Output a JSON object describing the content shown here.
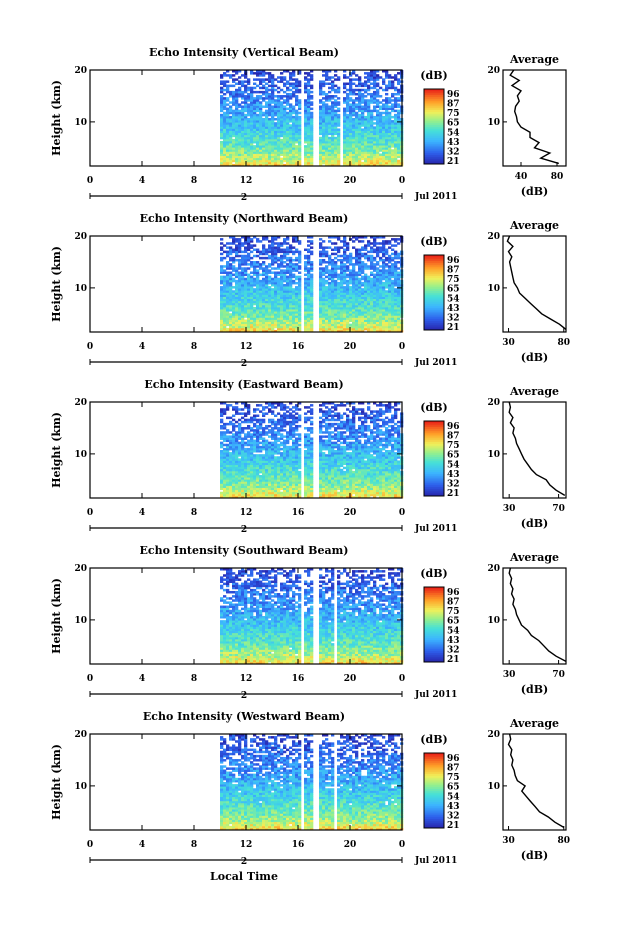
{
  "figure": {
    "xlabel": "Local Time",
    "date_label": "Jul 2011",
    "cbar_unit": "(dB)",
    "avg_title": "Average",
    "avg_xlabel": "(dB)",
    "day_label": "2"
  },
  "chart_data": [
    {
      "type": "heatmap",
      "title": "Echo Intensity (Vertical Beam)",
      "ylabel": "Height (km)",
      "xlabel": "Local Time",
      "x_ticks": [
        "0",
        "4",
        "8",
        "12",
        "16",
        "20",
        "0"
      ],
      "xlim": [
        0,
        24
      ],
      "y_ticks": [
        "10",
        "20"
      ],
      "ylim": [
        1.5,
        20
      ],
      "data_start_hour": 10,
      "gap_hours": [
        [
          16.3,
          16.5
        ],
        [
          17.2,
          17.5
        ],
        [
          19.2,
          19.4
        ]
      ],
      "colorbar_ticks": [
        "96",
        "87",
        "75",
        "65",
        "54",
        "43",
        "32",
        "21"
      ],
      "colorbar_range": [
        21,
        96
      ],
      "average_profile": {
        "x_ticks": [
          "40",
          "80"
        ],
        "xlim": [
          20,
          90
        ],
        "height_km": [
          2,
          3,
          4,
          5,
          6,
          7,
          8,
          9,
          10,
          11,
          12,
          13,
          14,
          15,
          16,
          17,
          18,
          19,
          20
        ],
        "values_db": [
          82,
          62,
          72,
          55,
          60,
          50,
          50,
          40,
          36,
          35,
          33,
          34,
          38,
          36,
          40,
          30,
          38,
          28,
          32
        ]
      }
    },
    {
      "type": "heatmap",
      "title": "Echo Intensity (Northward Beam)",
      "ylabel": "Height (km)",
      "xlabel": "Local Time",
      "x_ticks": [
        "0",
        "4",
        "8",
        "12",
        "16",
        "20",
        "0"
      ],
      "xlim": [
        0,
        24
      ],
      "y_ticks": [
        "10",
        "20"
      ],
      "ylim": [
        1.5,
        20
      ],
      "data_start_hour": 10,
      "gap_hours": [
        [
          16.3,
          16.5
        ],
        [
          17.2,
          17.5
        ]
      ],
      "colorbar_ticks": [
        "96",
        "87",
        "75",
        "65",
        "54",
        "43",
        "32",
        "21"
      ],
      "colorbar_range": [
        21,
        96
      ],
      "average_profile": {
        "x_ticks": [
          "30",
          "80"
        ],
        "xlim": [
          25,
          82
        ],
        "height_km": [
          2,
          3,
          4,
          5,
          6,
          7,
          8,
          9,
          10,
          11,
          12,
          13,
          14,
          15,
          16,
          17,
          18,
          19,
          20
        ],
        "values_db": [
          82,
          76,
          68,
          60,
          55,
          50,
          45,
          40,
          38,
          35,
          34,
          33,
          32,
          31,
          33,
          30,
          34,
          29,
          31
        ]
      }
    },
    {
      "type": "heatmap",
      "title": "Echo Intensity (Eastward Beam)",
      "ylabel": "Height (km)",
      "xlabel": "Local Time",
      "x_ticks": [
        "0",
        "4",
        "8",
        "12",
        "16",
        "20",
        "0"
      ],
      "xlim": [
        0,
        24
      ],
      "y_ticks": [
        "10",
        "20"
      ],
      "ylim": [
        1.5,
        20
      ],
      "data_start_hour": 10,
      "gap_hours": [
        [
          16.3,
          16.5
        ],
        [
          17.2,
          17.5
        ]
      ],
      "colorbar_ticks": [
        "96",
        "87",
        "75",
        "65",
        "54",
        "43",
        "32",
        "21"
      ],
      "colorbar_range": [
        21,
        96
      ],
      "average_profile": {
        "x_ticks": [
          "30",
          "70"
        ],
        "xlim": [
          25,
          76
        ],
        "height_km": [
          2,
          3,
          4,
          5,
          6,
          7,
          8,
          9,
          10,
          11,
          12,
          13,
          14,
          15,
          16,
          17,
          18,
          19,
          20
        ],
        "values_db": [
          75,
          68,
          63,
          60,
          52,
          48,
          45,
          42,
          40,
          38,
          36,
          35,
          33,
          34,
          31,
          33,
          30,
          31,
          30
        ]
      }
    },
    {
      "type": "heatmap",
      "title": "Echo Intensity (Southward Beam)",
      "ylabel": "Height (km)",
      "xlabel": "Local Time",
      "x_ticks": [
        "0",
        "4",
        "8",
        "12",
        "16",
        "20",
        "0"
      ],
      "xlim": [
        0,
        24
      ],
      "y_ticks": [
        "10",
        "20"
      ],
      "ylim": [
        1.5,
        20
      ],
      "data_start_hour": 10,
      "gap_hours": [
        [
          16.3,
          16.5
        ],
        [
          17.2,
          17.5
        ],
        [
          18.8,
          19.0
        ]
      ],
      "colorbar_ticks": [
        "96",
        "87",
        "75",
        "65",
        "54",
        "43",
        "32",
        "21"
      ],
      "colorbar_range": [
        21,
        96
      ],
      "average_profile": {
        "x_ticks": [
          "30",
          "70"
        ],
        "xlim": [
          25,
          76
        ],
        "height_km": [
          2,
          3,
          4,
          5,
          6,
          7,
          8,
          9,
          10,
          11,
          12,
          13,
          14,
          15,
          16,
          17,
          18,
          19,
          20
        ],
        "values_db": [
          76,
          68,
          62,
          58,
          54,
          48,
          45,
          40,
          38,
          36,
          35,
          33,
          34,
          32,
          33,
          31,
          32,
          30,
          31
        ]
      }
    },
    {
      "type": "heatmap",
      "title": "Echo Intensity (Westward Beam)",
      "ylabel": "Height (km)",
      "xlabel": "Local Time",
      "x_ticks": [
        "0",
        "4",
        "8",
        "12",
        "16",
        "20",
        "0"
      ],
      "xlim": [
        0,
        24
      ],
      "y_ticks": [
        "10",
        "20"
      ],
      "ylim": [
        1.5,
        20
      ],
      "data_start_hour": 10,
      "gap_hours": [
        [
          16.3,
          16.5
        ],
        [
          17.2,
          17.5
        ],
        [
          18.8,
          19.0
        ]
      ],
      "colorbar_ticks": [
        "96",
        "87",
        "75",
        "65",
        "54",
        "43",
        "32",
        "21"
      ],
      "colorbar_range": [
        21,
        96
      ],
      "average_profile": {
        "x_ticks": [
          "30",
          "80"
        ],
        "xlim": [
          25,
          82
        ],
        "height_km": [
          2,
          3,
          4,
          5,
          6,
          7,
          8,
          9,
          10,
          11,
          12,
          13,
          14,
          15,
          16,
          17,
          18,
          19,
          20
        ],
        "values_db": [
          80,
          72,
          66,
          58,
          54,
          50,
          46,
          42,
          45,
          38,
          36,
          35,
          33,
          34,
          32,
          33,
          30,
          32,
          31
        ]
      }
    }
  ]
}
